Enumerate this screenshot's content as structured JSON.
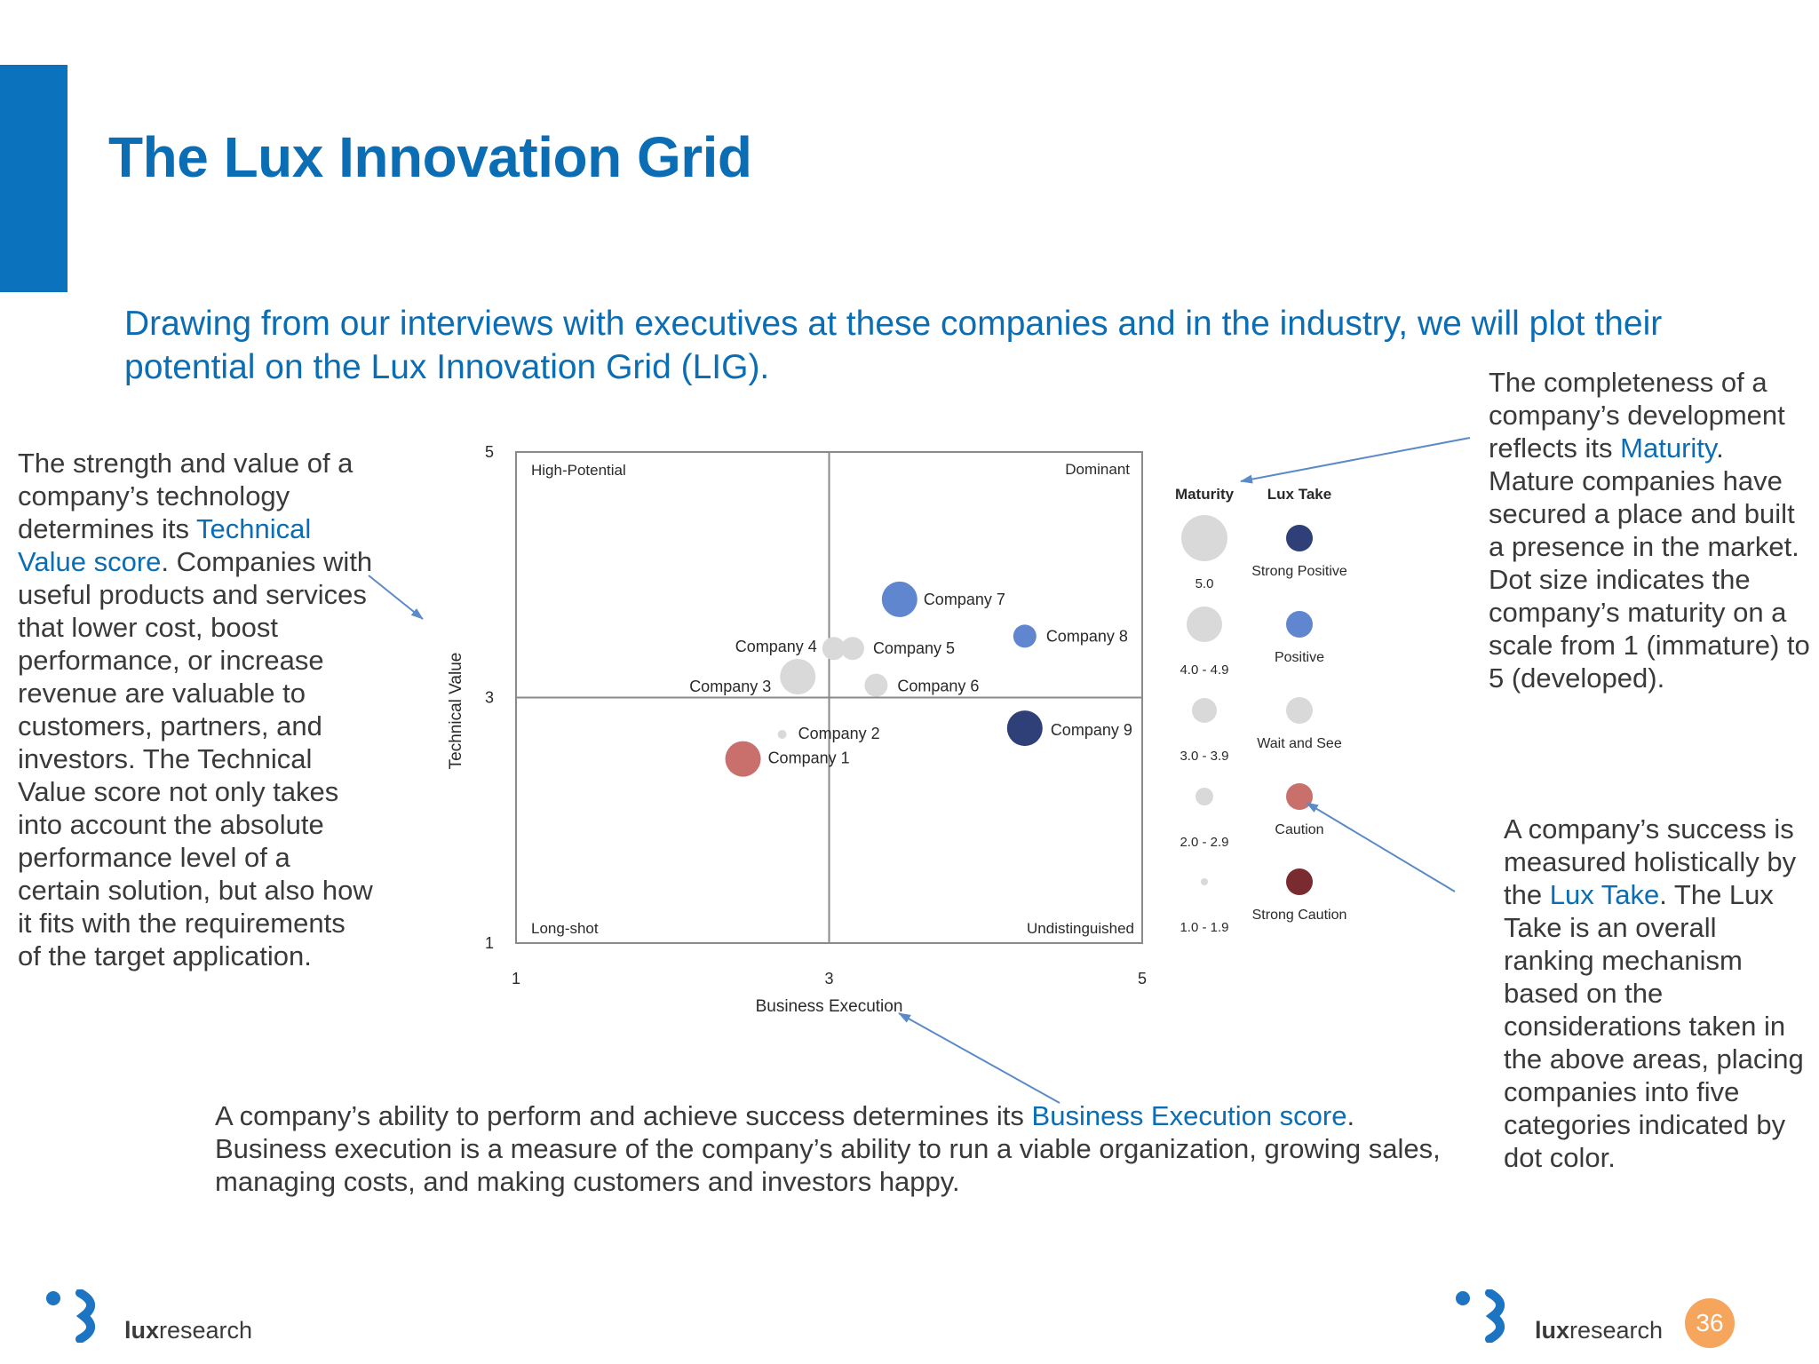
{
  "title": "The Lux Innovation Grid",
  "intro": "Drawing from our interviews with executives at these companies and in the industry, we will plot their potential on the Lux Innovation Grid (LIG).",
  "left_text": {
    "p1": "The strength and value of a company’s technology determines its ",
    "hl": "Technical Value score",
    "p2": ". Companies with useful products and services that lower cost, boost performance, or increase revenue are valuable to customers, partners, and investors. The Technical Value score not only takes into account the absolute performance level of a certain solution, but also how it fits with the requirements of the target application."
  },
  "right_top_text": {
    "p1": "The completeness of a company’s development reflects its ",
    "hl": "Maturity",
    "p2": ". Mature companies have secured a place and built a presence in the market. Dot size indicates the company’s maturity on a scale from 1 (immature) to 5 (developed)."
  },
  "right_bottom_text": {
    "p1": "A company’s success is measured holistically by the ",
    "hl": "Lux Take",
    "p2": ". The Lux Take is an overall ranking mechanism based on the considerations taken in the above areas, placing companies into five categories indicated by dot color."
  },
  "bottom_text": {
    "p1": "A company’s ability to perform and achieve success determines its ",
    "hl": "Business Execution score",
    "p2": ". Business execution is a measure of the company’s ability to run a viable organization, growing sales, managing costs, and making customers and investors happy."
  },
  "chart_data": {
    "type": "scatter",
    "xlabel": "Business Execution",
    "ylabel": "Technical Value",
    "xlim": [
      1,
      5
    ],
    "ylim": [
      1,
      5
    ],
    "xticks": [
      "1",
      "3",
      "5"
    ],
    "yticks": [
      "1",
      "3",
      "5"
    ],
    "quadrants": {
      "top_left": "High-Potential",
      "top_right": "Dominant",
      "bottom_left": "Long-shot",
      "bottom_right": "Undistinguished"
    },
    "points": [
      {
        "name": "Company 1",
        "x": 2.45,
        "y": 2.5,
        "maturity": 4.5,
        "lux_take": "Caution"
      },
      {
        "name": "Company 2",
        "x": 2.7,
        "y": 2.7,
        "maturity": 1.5,
        "lux_take": "Wait and See"
      },
      {
        "name": "Company 3",
        "x": 2.8,
        "y": 3.17,
        "maturity": 4.0,
        "lux_take": "Wait and See"
      },
      {
        "name": "Company 4",
        "x": 3.03,
        "y": 3.4,
        "maturity": 3.0,
        "lux_take": "Wait and See"
      },
      {
        "name": "Company 5",
        "x": 3.15,
        "y": 3.4,
        "maturity": 3.0,
        "lux_take": "Wait and See"
      },
      {
        "name": "Company 6",
        "x": 3.3,
        "y": 3.1,
        "maturity": 3.0,
        "lux_take": "Wait and See"
      },
      {
        "name": "Company 7",
        "x": 3.45,
        "y": 3.8,
        "maturity": 4.0,
        "lux_take": "Positive"
      },
      {
        "name": "Company 8",
        "x": 4.25,
        "y": 3.5,
        "maturity": 3.0,
        "lux_take": "Positive"
      },
      {
        "name": "Company 9",
        "x": 4.25,
        "y": 2.75,
        "maturity": 4.0,
        "lux_take": "Strong Positive"
      }
    ],
    "legend": {
      "maturity_title": "Maturity",
      "lux_take_title": "Lux Take",
      "maturity_levels": [
        "5.0",
        "4.0 - 4.9",
        "3.0 - 3.9",
        "2.0 - 2.9",
        "1.0 - 1.9"
      ],
      "lux_take_categories": [
        {
          "label": "Strong Positive",
          "color": "#2f3f77"
        },
        {
          "label": "Positive",
          "color": "#5f86cf"
        },
        {
          "label": "Wait and See",
          "color": "#d9d9d9"
        },
        {
          "label": "Caution",
          "color": "#c9706c"
        },
        {
          "label": "Strong Caution",
          "color": "#7a2b2f"
        }
      ]
    }
  },
  "logo_left": {
    "bold": "lux",
    "rest": "research"
  },
  "logo_right": {
    "bold": "lux",
    "rest": "research"
  },
  "page_number": "36",
  "colors": {
    "accent": "#0b72bd",
    "page_badge": "#f5a55c",
    "arrow": "#5a8ac8"
  }
}
